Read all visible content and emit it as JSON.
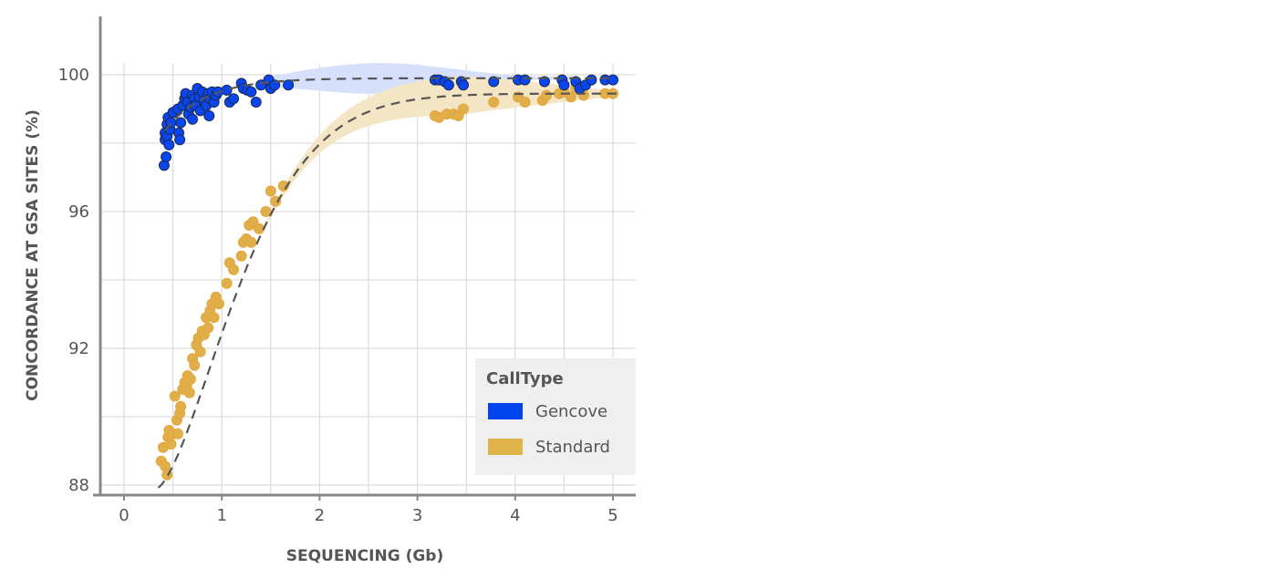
{
  "chart_data": {
    "type": "scatter",
    "title": "",
    "xlabel": "SEQUENCING (Gb)",
    "ylabel": "CONCORDANCE AT GSA SITES (%)",
    "xlim": [
      -0.25,
      5.25
    ],
    "ylim": [
      87.7,
      101.7
    ],
    "x_ticks": [
      0,
      1,
      2,
      3,
      4,
      5
    ],
    "y_ticks": [
      88,
      92,
      96,
      100
    ],
    "grid": true,
    "legend": {
      "title": "CallType",
      "position": "inside-bottom-right"
    },
    "series": [
      {
        "name": "Gencove",
        "color": "#0044ee",
        "band_color": "#d6e0fb",
        "trend": "saturating fit, dashed",
        "points": [
          [
            0.41,
            97.35
          ],
          [
            0.42,
            98.1
          ],
          [
            0.42,
            98.3
          ],
          [
            0.43,
            97.6
          ],
          [
            0.44,
            98.55
          ],
          [
            0.44,
            98.2
          ],
          [
            0.45,
            98.75
          ],
          [
            0.46,
            97.95
          ],
          [
            0.47,
            98.4
          ],
          [
            0.48,
            98.6
          ],
          [
            0.5,
            98.9
          ],
          [
            0.55,
            99.0
          ],
          [
            0.56,
            98.3
          ],
          [
            0.57,
            98.1
          ],
          [
            0.58,
            98.6
          ],
          [
            0.6,
            99.1
          ],
          [
            0.62,
            99.3
          ],
          [
            0.63,
            99.45
          ],
          [
            0.65,
            99.2
          ],
          [
            0.66,
            98.85
          ],
          [
            0.68,
            99.05
          ],
          [
            0.7,
            98.7
          ],
          [
            0.7,
            99.4
          ],
          [
            0.72,
            99.3
          ],
          [
            0.73,
            99.1
          ],
          [
            0.75,
            99.6
          ],
          [
            0.77,
            99.35
          ],
          [
            0.78,
            98.95
          ],
          [
            0.8,
            99.5
          ],
          [
            0.82,
            99.25
          ],
          [
            0.84,
            99.1
          ],
          [
            0.86,
            99.45
          ],
          [
            0.87,
            98.8
          ],
          [
            0.88,
            99.3
          ],
          [
            0.9,
            99.5
          ],
          [
            0.92,
            99.2
          ],
          [
            0.94,
            99.4
          ],
          [
            0.96,
            99.5
          ],
          [
            1.05,
            99.55
          ],
          [
            1.08,
            99.2
          ],
          [
            1.12,
            99.3
          ],
          [
            1.2,
            99.75
          ],
          [
            1.22,
            99.6
          ],
          [
            1.26,
            99.55
          ],
          [
            1.3,
            99.5
          ],
          [
            1.35,
            99.2
          ],
          [
            1.4,
            99.7
          ],
          [
            1.48,
            99.85
          ],
          [
            1.5,
            99.6
          ],
          [
            1.54,
            99.7
          ],
          [
            1.68,
            99.7
          ],
          [
            3.18,
            99.85
          ],
          [
            3.22,
            99.85
          ],
          [
            3.28,
            99.8
          ],
          [
            3.32,
            99.7
          ],
          [
            3.45,
            99.8
          ],
          [
            3.47,
            99.7
          ],
          [
            3.78,
            99.8
          ],
          [
            4.03,
            99.85
          ],
          [
            4.1,
            99.85
          ],
          [
            4.3,
            99.8
          ],
          [
            4.48,
            99.85
          ],
          [
            4.5,
            99.7
          ],
          [
            4.62,
            99.8
          ],
          [
            4.66,
            99.6
          ],
          [
            4.72,
            99.7
          ],
          [
            4.78,
            99.85
          ],
          [
            4.92,
            99.85
          ],
          [
            5.0,
            99.85
          ]
        ]
      },
      {
        "name": "Standard",
        "color": "#e0b040",
        "band_color": "#f4e6c5",
        "trend": "logistic-like fit, dashed",
        "points": [
          [
            0.38,
            88.7
          ],
          [
            0.4,
            89.1
          ],
          [
            0.42,
            88.55
          ],
          [
            0.44,
            88.3
          ],
          [
            0.45,
            89.4
          ],
          [
            0.46,
            89.6
          ],
          [
            0.48,
            89.2
          ],
          [
            0.5,
            89.5
          ],
          [
            0.52,
            90.6
          ],
          [
            0.54,
            89.9
          ],
          [
            0.55,
            89.5
          ],
          [
            0.57,
            90.1
          ],
          [
            0.58,
            90.3
          ],
          [
            0.6,
            90.8
          ],
          [
            0.62,
            91.0
          ],
          [
            0.64,
            90.9
          ],
          [
            0.65,
            91.2
          ],
          [
            0.67,
            90.7
          ],
          [
            0.68,
            91.1
          ],
          [
            0.7,
            91.7
          ],
          [
            0.72,
            91.5
          ],
          [
            0.74,
            92.1
          ],
          [
            0.76,
            92.3
          ],
          [
            0.78,
            91.9
          ],
          [
            0.8,
            92.5
          ],
          [
            0.82,
            92.4
          ],
          [
            0.84,
            92.9
          ],
          [
            0.86,
            92.6
          ],
          [
            0.88,
            93.1
          ],
          [
            0.9,
            93.3
          ],
          [
            0.92,
            92.9
          ],
          [
            0.94,
            93.5
          ],
          [
            0.97,
            93.3
          ],
          [
            1.05,
            93.9
          ],
          [
            1.08,
            94.5
          ],
          [
            1.12,
            94.3
          ],
          [
            1.2,
            94.7
          ],
          [
            1.22,
            95.1
          ],
          [
            1.25,
            95.2
          ],
          [
            1.28,
            95.6
          ],
          [
            1.3,
            95.1
          ],
          [
            1.32,
            95.7
          ],
          [
            1.38,
            95.5
          ],
          [
            1.45,
            96.0
          ],
          [
            1.5,
            96.6
          ],
          [
            1.55,
            96.3
          ],
          [
            1.63,
            96.75
          ],
          [
            3.18,
            98.8
          ],
          [
            3.22,
            98.75
          ],
          [
            3.3,
            98.85
          ],
          [
            3.37,
            98.85
          ],
          [
            3.42,
            98.8
          ],
          [
            3.47,
            99.0
          ],
          [
            3.78,
            99.2
          ],
          [
            4.03,
            99.35
          ],
          [
            4.1,
            99.2
          ],
          [
            4.28,
            99.25
          ],
          [
            4.32,
            99.4
          ],
          [
            4.45,
            99.45
          ],
          [
            4.5,
            99.5
          ],
          [
            4.57,
            99.35
          ],
          [
            4.62,
            99.6
          ],
          [
            4.7,
            99.4
          ],
          [
            4.92,
            99.45
          ],
          [
            5.0,
            99.45
          ]
        ]
      }
    ]
  },
  "legend": {
    "title": "CallType",
    "items": [
      {
        "label": "Gencove",
        "color": "#0044ee"
      },
      {
        "label": "Standard",
        "color": "#e0b040"
      }
    ]
  }
}
